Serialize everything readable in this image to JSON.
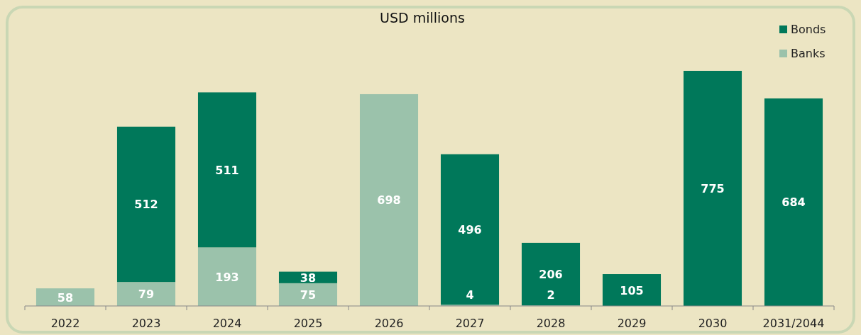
{
  "chart_data": {
    "type": "bar",
    "subtitle": "USD millions",
    "categories": [
      "2022",
      "2023",
      "2024",
      "2025",
      "2026",
      "2027",
      "2028",
      "2029",
      "2030",
      "2031/2044"
    ],
    "stacked": true,
    "data_labels": true,
    "legend": "top right",
    "series": [
      {
        "name": "Banks",
        "color": "#9bc2ab",
        "values": [
          58,
          79,
          193,
          75,
          698,
          4,
          2,
          null,
          null,
          null
        ]
      },
      {
        "name": "Bonds",
        "color": "#00785a",
        "values": [
          null,
          512,
          511,
          38,
          null,
          496,
          206,
          105,
          775,
          684
        ]
      }
    ]
  }
}
